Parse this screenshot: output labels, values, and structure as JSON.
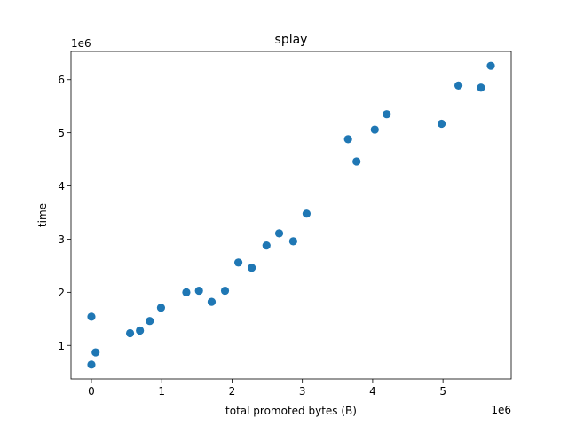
{
  "chart_data": {
    "type": "scatter",
    "title": "splay",
    "xlabel": "total promoted bytes (B)",
    "ylabel": "time",
    "x_offset_label": "1e6",
    "y_offset_label": "1e6",
    "xlim": [
      -290000,
      5970000
    ],
    "ylim": [
      370000,
      6530000
    ],
    "x_ticks": [
      0,
      1000000,
      2000000,
      3000000,
      4000000,
      5000000
    ],
    "x_tick_labels": [
      "0",
      "1",
      "2",
      "3",
      "4",
      "5"
    ],
    "y_ticks": [
      1000000,
      2000000,
      3000000,
      4000000,
      5000000,
      6000000
    ],
    "y_tick_labels": [
      "1",
      "2",
      "3",
      "4",
      "5",
      "6"
    ],
    "grid": false,
    "legend": "none",
    "marker_color": "#1f77b4",
    "points": [
      {
        "x": 0,
        "y": 1540000
      },
      {
        "x": 0,
        "y": 640000
      },
      {
        "x": 60000,
        "y": 870000
      },
      {
        "x": 550000,
        "y": 1230000
      },
      {
        "x": 690000,
        "y": 1280000
      },
      {
        "x": 830000,
        "y": 1460000
      },
      {
        "x": 990000,
        "y": 1710000
      },
      {
        "x": 1350000,
        "y": 2000000
      },
      {
        "x": 1530000,
        "y": 2030000
      },
      {
        "x": 1710000,
        "y": 1820000
      },
      {
        "x": 1900000,
        "y": 2030000
      },
      {
        "x": 2090000,
        "y": 2560000
      },
      {
        "x": 2280000,
        "y": 2460000
      },
      {
        "x": 2490000,
        "y": 2880000
      },
      {
        "x": 2670000,
        "y": 3110000
      },
      {
        "x": 2870000,
        "y": 2960000
      },
      {
        "x": 3060000,
        "y": 3480000
      },
      {
        "x": 3650000,
        "y": 4880000
      },
      {
        "x": 3770000,
        "y": 4460000
      },
      {
        "x": 4030000,
        "y": 5060000
      },
      {
        "x": 4200000,
        "y": 5350000
      },
      {
        "x": 4980000,
        "y": 5170000
      },
      {
        "x": 5220000,
        "y": 5890000
      },
      {
        "x": 5540000,
        "y": 5850000
      },
      {
        "x": 5680000,
        "y": 6260000
      }
    ]
  }
}
